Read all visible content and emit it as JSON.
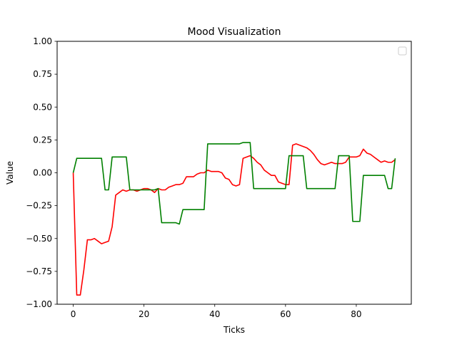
{
  "chart_data": {
    "type": "line",
    "title": "Mood Visualization",
    "xlabel": "Ticks",
    "ylabel": "Value",
    "xlim": [
      -4.55,
      95.55
    ],
    "ylim": [
      -1.0,
      1.0
    ],
    "x_ticks": [
      0,
      20,
      40,
      60,
      80
    ],
    "y_ticks": [
      -1.0,
      -0.75,
      -0.5,
      -0.25,
      0.0,
      0.25,
      0.5,
      0.75,
      1.0
    ],
    "y_tick_labels": [
      "−1.00",
      "−0.75",
      "−0.50",
      "−0.25",
      "0.00",
      "0.25",
      "0.50",
      "0.75",
      "1.00"
    ],
    "grid": false,
    "legend": {
      "position": "upper right",
      "entries": []
    },
    "series": [
      {
        "color": "#ff0000",
        "x": [
          0,
          1,
          2,
          3,
          4,
          5,
          6,
          7,
          8,
          9,
          10,
          11,
          12,
          13,
          14,
          15,
          16,
          17,
          18,
          19,
          20,
          21,
          22,
          23,
          24,
          25,
          26,
          27,
          28,
          29,
          30,
          31,
          32,
          33,
          34,
          35,
          36,
          37,
          38,
          39,
          40,
          41,
          42,
          43,
          44,
          45,
          46,
          47,
          48,
          49,
          50,
          51,
          52,
          53,
          54,
          55,
          56,
          57,
          58,
          59,
          60,
          61,
          62,
          63,
          64,
          65,
          66,
          67,
          68,
          69,
          70,
          71,
          72,
          73,
          74,
          75,
          76,
          77,
          78,
          79,
          80,
          81,
          82,
          83,
          84,
          85,
          86,
          87,
          88,
          89,
          90,
          91
        ],
        "y": [
          0.0,
          -0.93,
          -0.93,
          -0.74,
          -0.51,
          -0.51,
          -0.5,
          -0.52,
          -0.54,
          -0.53,
          -0.52,
          -0.41,
          -0.17,
          -0.15,
          -0.13,
          -0.14,
          -0.13,
          -0.13,
          -0.14,
          -0.13,
          -0.12,
          -0.12,
          -0.13,
          -0.15,
          -0.12,
          -0.13,
          -0.13,
          -0.11,
          -0.1,
          -0.09,
          -0.09,
          -0.08,
          -0.03,
          -0.03,
          -0.03,
          -0.01,
          0.0,
          0.0,
          0.02,
          0.01,
          0.01,
          0.01,
          0.0,
          -0.04,
          -0.05,
          -0.09,
          -0.1,
          -0.09,
          0.11,
          0.12,
          0.13,
          0.11,
          0.08,
          0.06,
          0.02,
          0.0,
          -0.02,
          -0.02,
          -0.07,
          -0.08,
          -0.09,
          -0.09,
          0.21,
          0.22,
          0.21,
          0.2,
          0.19,
          0.17,
          0.14,
          0.1,
          0.07,
          0.06,
          0.07,
          0.08,
          0.07,
          0.07,
          0.07,
          0.08,
          0.12,
          0.12,
          0.12,
          0.13,
          0.18,
          0.15,
          0.14,
          0.12,
          0.1,
          0.08,
          0.09,
          0.08,
          0.08,
          0.1
        ]
      },
      {
        "color": "#008000",
        "x": [
          0,
          1,
          2,
          3,
          4,
          5,
          6,
          7,
          8,
          9,
          10,
          11,
          12,
          13,
          14,
          15,
          16,
          17,
          18,
          19,
          20,
          21,
          22,
          23,
          24,
          25,
          26,
          27,
          28,
          29,
          30,
          31,
          32,
          33,
          34,
          35,
          36,
          37,
          38,
          39,
          40,
          41,
          42,
          43,
          44,
          45,
          46,
          47,
          48,
          49,
          50,
          51,
          52,
          53,
          54,
          55,
          56,
          57,
          58,
          59,
          60,
          61,
          62,
          63,
          64,
          65,
          66,
          67,
          68,
          69,
          70,
          71,
          72,
          73,
          74,
          75,
          76,
          77,
          78,
          79,
          80,
          81,
          82,
          83,
          84,
          85,
          86,
          87,
          88,
          89,
          90,
          91
        ],
        "y": [
          0.0,
          0.11,
          0.11,
          0.11,
          0.11,
          0.11,
          0.11,
          0.11,
          0.11,
          -0.13,
          -0.13,
          0.12,
          0.12,
          0.12,
          0.12,
          0.12,
          -0.13,
          -0.13,
          -0.13,
          -0.13,
          -0.13,
          -0.13,
          -0.13,
          -0.13,
          -0.12,
          -0.38,
          -0.38,
          -0.38,
          -0.38,
          -0.38,
          -0.39,
          -0.28,
          -0.28,
          -0.28,
          -0.28,
          -0.28,
          -0.28,
          -0.28,
          0.22,
          0.22,
          0.22,
          0.22,
          0.22,
          0.22,
          0.22,
          0.22,
          0.22,
          0.22,
          0.23,
          0.23,
          0.23,
          -0.12,
          -0.12,
          -0.12,
          -0.12,
          -0.12,
          -0.12,
          -0.12,
          -0.12,
          -0.12,
          -0.12,
          0.13,
          0.13,
          0.13,
          0.13,
          0.13,
          -0.12,
          -0.12,
          -0.12,
          -0.12,
          -0.12,
          -0.12,
          -0.12,
          -0.12,
          -0.12,
          0.13,
          0.13,
          0.13,
          0.13,
          -0.37,
          -0.37,
          -0.37,
          -0.02,
          -0.02,
          -0.02,
          -0.02,
          -0.02,
          -0.02,
          -0.02,
          -0.12,
          -0.12,
          0.11
        ]
      }
    ]
  }
}
